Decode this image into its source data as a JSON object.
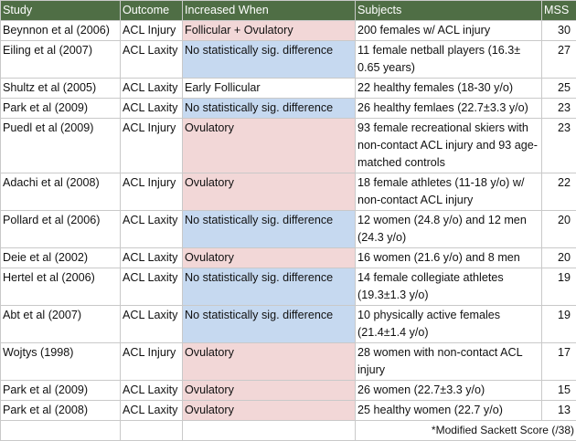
{
  "headers": {
    "study": "Study",
    "outcome": "Outcome",
    "increased": "Increased When",
    "subjects": "Subjects",
    "mss": "MSS"
  },
  "rows": [
    {
      "study": "Beynnon et al (2006)",
      "outcome": "ACL Injury",
      "increased": "Follicular + Ovulatory",
      "subjects": "200 females w/ ACL injury",
      "mss": "30",
      "shade": "pink"
    },
    {
      "study": "Eiling et al (2007)",
      "outcome": "ACL Laxity",
      "increased": "No statistically sig. difference",
      "subjects": "11 female netball players (16.3± 0.65 years)",
      "mss": "27",
      "shade": "blue"
    },
    {
      "study": "Shultz et al (2005)",
      "outcome": "ACL Laxity",
      "increased": "Early Follicular",
      "subjects": "22 healthy females (18-30 y/o)",
      "mss": "25",
      "shade": "none"
    },
    {
      "study": "Park et al (2009)",
      "outcome": "ACL Laxity",
      "increased": "No statistically sig. difference",
      "subjects": "26 healthy femlaes (22.7±3.3 y/o)",
      "mss": "23",
      "shade": "blue"
    },
    {
      "study": "Puedl et al (2009)",
      "outcome": "ACL Injury",
      "increased": "Ovulatory",
      "subjects": "93 female recreational skiers with non-contact ACL injury and 93 age-matched controls",
      "mss": "23",
      "shade": "pink"
    },
    {
      "study": "Adachi et al (2008)",
      "outcome": "ACL Injury",
      "increased": "Ovulatory",
      "subjects": "18 female athletes (11-18 y/o) w/ non-contact ACL injury",
      "mss": "22",
      "shade": "pink"
    },
    {
      "study": "Pollard et al (2006)",
      "outcome": "ACL Laxity",
      "increased": "No statistically sig. difference",
      "subjects": "12 women (24.8 y/o) and 12 men (24.3 y/o)",
      "mss": "20",
      "shade": "blue"
    },
    {
      "study": "Deie et al (2002)",
      "outcome": "ACL Laxity",
      "increased": "Ovulatory",
      "subjects": "16 women (21.6 y/o) and 8 men",
      "mss": "20",
      "shade": "pink"
    },
    {
      "study": "Hertel et al (2006)",
      "outcome": "ACL Laxity",
      "increased": "No statistically sig. difference",
      "subjects": "14 female collegiate athletes (19.3±1.3 y/o)",
      "mss": "19",
      "shade": "blue"
    },
    {
      "study": "Abt et al (2007)",
      "outcome": "ACL Laxity",
      "increased": "No statistically sig. difference",
      "subjects": "10 physically active females (21.4±1.4 y/o)",
      "mss": "19",
      "shade": "blue"
    },
    {
      "study": "Wojtys (1998)",
      "outcome": "ACL Injury",
      "increased": "Ovulatory",
      "subjects": "28 women with non-contact ACL injury",
      "mss": "17",
      "shade": "pink"
    },
    {
      "study": "Park et al (2009)",
      "outcome": "ACL Laxity",
      "increased": "Ovulatory",
      "subjects": "26 women (22.7±3.3 y/o)",
      "mss": "15",
      "shade": "pink"
    },
    {
      "study": "Park et al (2008)",
      "outcome": "ACL Laxity",
      "increased": "Ovulatory",
      "subjects": "25 healthy women (22.7 y/o)",
      "mss": "13",
      "shade": "pink"
    }
  ],
  "footnote": "*Modified Sackett Score (/38)",
  "colors": {
    "header_bg": "#4f6e45",
    "header_text": "#ffffff",
    "pink_shade": "#f2d7d7",
    "blue_shade": "#c6d9f0"
  }
}
